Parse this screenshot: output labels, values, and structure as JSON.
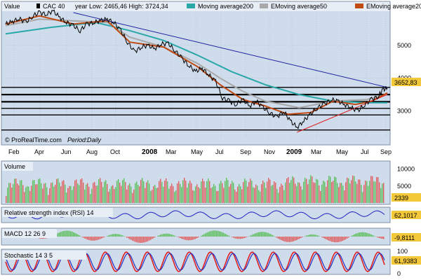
{
  "chart_data": [
    {
      "type": "line",
      "panel": "price",
      "legend": {
        "value_label": "Value",
        "instrument": "CAC 40",
        "range_text": "year Low: 2465,46 High: 3724,34",
        "series_names": [
          "Moving average200",
          "EMoving average50",
          "EMoving average20"
        ]
      },
      "colors": {
        "price": "#000000",
        "ma200": "#2aa8a8",
        "ema50": "#a8a8a8",
        "ema20": "#c04a10",
        "trend_down": "#2020a0",
        "trend_up": "#e02020",
        "support": "#000000"
      },
      "x_months": [
        "Feb",
        "Apr",
        "Jun",
        "Aug",
        "Oct",
        "2008",
        "Mar",
        "May",
        "Jul",
        "Sep",
        "Nov",
        "2009",
        "Mar",
        "May",
        "Jul",
        "Sep"
      ],
      "ylim": [
        2200,
        6000
      ],
      "y_ticks": [
        3000,
        4000,
        5000
      ],
      "last_value": "3652,83",
      "price_path": [
        [
          0,
          5650
        ],
        [
          3,
          5720
        ],
        [
          6,
          5820
        ],
        [
          9,
          5700
        ],
        [
          12,
          5900
        ],
        [
          15,
          6000
        ],
        [
          18,
          5950
        ],
        [
          21,
          6050
        ],
        [
          24,
          5850
        ],
        [
          27,
          5700
        ],
        [
          30,
          5600
        ],
        [
          33,
          5450
        ],
        [
          36,
          5650
        ],
        [
          39,
          5700
        ],
        [
          42,
          5750
        ],
        [
          45,
          5800
        ],
        [
          48,
          5700
        ],
        [
          51,
          5450
        ],
        [
          54,
          5100
        ],
        [
          57,
          4800
        ],
        [
          60,
          4950
        ],
        [
          63,
          5000
        ],
        [
          66,
          4900
        ],
        [
          69,
          5050
        ],
        [
          72,
          5050
        ],
        [
          75,
          4850
        ],
        [
          78,
          4600
        ],
        [
          81,
          4400
        ],
        [
          84,
          4200
        ],
        [
          87,
          4300
        ],
        [
          90,
          4100
        ],
        [
          93,
          3900
        ],
        [
          96,
          3400
        ],
        [
          99,
          3300
        ],
        [
          102,
          3200
        ],
        [
          105,
          3350
        ],
        [
          108,
          3150
        ],
        [
          111,
          3300
        ],
        [
          114,
          3100
        ],
        [
          117,
          2950
        ],
        [
          120,
          2800
        ],
        [
          123,
          3000
        ],
        [
          126,
          2700
        ],
        [
          129,
          2500
        ],
        [
          132,
          2700
        ],
        [
          135,
          2900
        ],
        [
          138,
          3100
        ],
        [
          141,
          3200
        ],
        [
          144,
          3350
        ],
        [
          147,
          3300
        ],
        [
          150,
          3200
        ],
        [
          153,
          3100
        ],
        [
          156,
          3000
        ],
        [
          159,
          3200
        ],
        [
          162,
          3350
        ],
        [
          165,
          3450
        ],
        [
          167,
          3650
        ],
        [
          169,
          3700
        ]
      ],
      "ma200_path": [
        [
          0,
          5350
        ],
        [
          20,
          5550
        ],
        [
          40,
          5700
        ],
        [
          55,
          5450
        ],
        [
          70,
          5150
        ],
        [
          85,
          4700
        ],
        [
          100,
          4200
        ],
        [
          115,
          3800
        ],
        [
          130,
          3500
        ],
        [
          145,
          3300
        ],
        [
          160,
          3250
        ],
        [
          169,
          3250
        ]
      ],
      "ema50_path": [
        [
          0,
          5600
        ],
        [
          15,
          5800
        ],
        [
          30,
          5750
        ],
        [
          45,
          5700
        ],
        [
          55,
          5250
        ],
        [
          70,
          4950
        ],
        [
          85,
          4450
        ],
        [
          95,
          4000
        ],
        [
          105,
          3600
        ],
        [
          115,
          3300
        ],
        [
          130,
          3100
        ],
        [
          145,
          3300
        ],
        [
          160,
          3350
        ],
        [
          169,
          3500
        ]
      ],
      "ema20_path": [
        [
          0,
          5650
        ],
        [
          15,
          5900
        ],
        [
          30,
          5650
        ],
        [
          45,
          5750
        ],
        [
          55,
          5100
        ],
        [
          70,
          4950
        ],
        [
          85,
          4350
        ],
        [
          95,
          3800
        ],
        [
          105,
          3350
        ],
        [
          115,
          3150
        ],
        [
          125,
          2900
        ],
        [
          135,
          2950
        ],
        [
          145,
          3300
        ],
        [
          155,
          3200
        ],
        [
          162,
          3300
        ],
        [
          169,
          3550
        ]
      ],
      "trend_down": [
        [
          30,
          6000
        ],
        [
          169,
          3720
        ]
      ],
      "trend_up": [
        [
          129,
          2350
        ],
        [
          169,
          3500
        ]
      ],
      "support_levels": [
        3720,
        3500,
        3280,
        3080,
        2880,
        2420
      ],
      "footer_brand": "© ProRealTime.com",
      "footer_period_label": "Period:",
      "footer_period_value": "Daily"
    },
    {
      "type": "bar",
      "panel": "volume",
      "title": "Volume",
      "ylim": [
        0,
        12000
      ],
      "y_ticks": [
        5000,
        10000
      ],
      "last_value": "2339"
    },
    {
      "type": "line",
      "panel": "rsi",
      "title": "Relative strength index (RSI) 14",
      "last_value": "62,1017",
      "color": "#2020c0"
    },
    {
      "type": "bar",
      "panel": "macd",
      "title": "MACD 12 26 9",
      "last_value": "-9,8111"
    },
    {
      "type": "line",
      "panel": "stochastic",
      "title": "Stochastic 14 3 5",
      "y_ticks": [
        0,
        100
      ],
      "last_value": "61,9383"
    }
  ]
}
